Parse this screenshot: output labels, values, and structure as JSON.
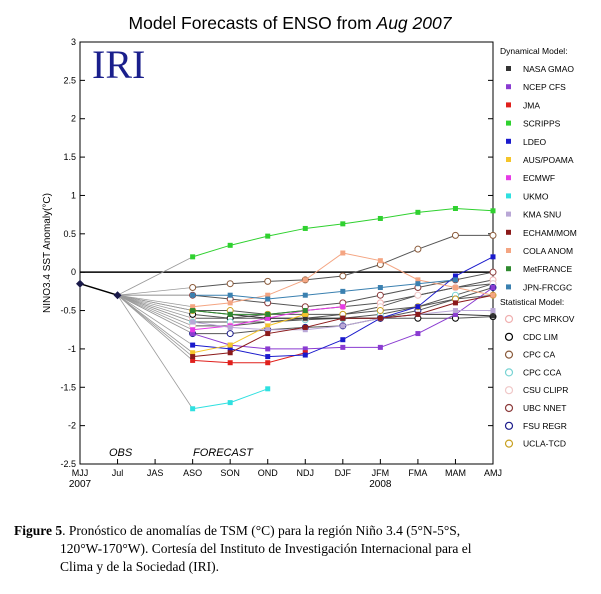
{
  "chart_data": {
    "type": "line",
    "title": "Model Forecasts of ENSO from",
    "title_month": "Aug 2007",
    "logo": "IRI",
    "ylabel": "NINO3.4 SST Anomaly(°C)",
    "ylim": [
      -2.5,
      3
    ],
    "yticks": [
      -2.5,
      -2,
      -1.5,
      -1,
      -0.5,
      0,
      0.5,
      1,
      1.5,
      2,
      2.5,
      3
    ],
    "ytick_labels": [
      "-2.5",
      "-2",
      "-1.5",
      "-1",
      "-0.5",
      "0",
      "0.5",
      "1",
      "1.5",
      "2",
      "2.5",
      "3"
    ],
    "x_categories": [
      "MJJ",
      "Jul",
      "JAS",
      "ASO",
      "SON",
      "OND",
      "NDJ",
      "DJF",
      "JFM",
      "FMA",
      "MAM",
      "AMJ"
    ],
    "year_labels": [
      {
        "label": "2007",
        "at": 0
      },
      {
        "label": "2008",
        "at": 8
      }
    ],
    "obs_label": "OBS",
    "forecast_label": "FORECAST",
    "zero_line": true,
    "observed": {
      "x": [
        0,
        1
      ],
      "values": [
        -0.15,
        -0.3
      ]
    },
    "legend_dynamical_title": "Dynamical Model:",
    "legend_statistical_title": "Statistical Model:",
    "dynamical": [
      {
        "name": "NASA GMAO",
        "color": "#333333",
        "values": [
          -0.5,
          -0.55,
          -0.6,
          -0.6,
          -0.6,
          -0.6,
          -0.55,
          -0.55,
          -0.57
        ]
      },
      {
        "name": "NCEP CFS",
        "color": "#8a3bd1",
        "values": [
          -0.8,
          -0.95,
          -1.0,
          -1.0,
          -0.98,
          -0.98,
          -0.8,
          -0.55,
          -0.2
        ]
      },
      {
        "name": "JMA",
        "color": "#e0201c",
        "values": [
          -1.15,
          -1.18,
          -1.18,
          -1.05
        ]
      },
      {
        "name": "SCRIPPS",
        "color": "#2fd12f",
        "values": [
          0.2,
          0.35,
          0.47,
          0.57,
          0.63,
          0.7,
          0.78,
          0.83,
          0.8
        ]
      },
      {
        "name": "LDEO",
        "color": "#1a1acc",
        "values": [
          -0.95,
          -1.0,
          -1.1,
          -1.08,
          -0.88,
          -0.6,
          -0.45,
          -0.05,
          0.2
        ]
      },
      {
        "name": "AUS/POAMA",
        "color": "#f5c52a",
        "values": [
          -1.05,
          -0.95,
          -0.7,
          -0.55
        ]
      },
      {
        "name": "ECMWF",
        "color": "#e63be6",
        "values": [
          -0.75,
          -0.7,
          -0.6,
          -0.5,
          -0.45
        ]
      },
      {
        "name": "UKMO",
        "color": "#2fe0e0",
        "values": [
          -1.78,
          -1.7,
          -1.52
        ]
      },
      {
        "name": "KMA SNU",
        "color": "#b9a7d6",
        "values": [
          -0.65,
          -0.72,
          -0.75,
          -0.75,
          -0.7,
          -0.6,
          -0.55,
          -0.5,
          -0.5
        ]
      },
      {
        "name": "ECHAM/MOM",
        "color": "#8b1a1a",
        "values": [
          -1.1,
          -1.05,
          -0.8,
          -0.72,
          -0.6,
          -0.6,
          -0.55,
          -0.4,
          -0.3
        ]
      },
      {
        "name": "COLA ANOM",
        "color": "#f4a582",
        "values": [
          -0.45,
          -0.4,
          -0.3,
          -0.1,
          0.25,
          0.15,
          -0.1,
          -0.2,
          -0.3
        ]
      },
      {
        "name": "MetFRANCE",
        "color": "#2f8a2f",
        "values": [
          -0.5,
          -0.55,
          -0.55,
          -0.5
        ]
      },
      {
        "name": "JPN-FRCGC",
        "color": "#3a80b0",
        "values": [
          -0.3,
          -0.3,
          -0.35,
          -0.3,
          -0.25,
          -0.2,
          -0.15,
          -0.1
        ]
      }
    ],
    "statistical": [
      {
        "name": "CPC MRKOV",
        "color": "#f0b0b0",
        "values": [
          -0.6,
          -0.6,
          -0.55,
          -0.5,
          -0.45,
          -0.4,
          -0.3,
          -0.2,
          -0.1
        ]
      },
      {
        "name": "CDC LIM",
        "color": "#000000",
        "values": [
          -0.55,
          -0.6,
          -0.6,
          -0.6,
          -0.6,
          -0.6,
          -0.6,
          -0.6,
          -0.58
        ]
      },
      {
        "name": "CPC CA",
        "color": "#8a5a3a",
        "values": [
          -0.2,
          -0.15,
          -0.12,
          -0.1,
          -0.05,
          0.1,
          0.3,
          0.48,
          0.48
        ]
      },
      {
        "name": "CPC CCA",
        "color": "#7ad4d4",
        "values": [
          -0.65,
          -0.65,
          -0.65,
          -0.62,
          -0.6,
          -0.55,
          -0.45,
          -0.3,
          -0.15
        ]
      },
      {
        "name": "CSU CLIPR",
        "color": "#f0c8c8",
        "values": [
          -0.7,
          -0.7,
          -0.65,
          -0.6,
          -0.55,
          -0.45,
          -0.3,
          -0.2,
          -0.15
        ]
      },
      {
        "name": "UBC NNET",
        "color": "#8b3a3a",
        "values": [
          -0.3,
          -0.35,
          -0.4,
          -0.45,
          -0.4,
          -0.3,
          -0.2,
          -0.1,
          0.0
        ]
      },
      {
        "name": "FSU REGR",
        "color": "#1a1a8a",
        "values": [
          -0.8,
          -0.8,
          -0.75,
          -0.72,
          -0.7,
          -0.6,
          -0.5,
          -0.35,
          -0.2
        ]
      },
      {
        "name": "UCLA-TCD",
        "color": "#c8a020",
        "values": [
          -0.5,
          -0.5,
          -0.55,
          -0.55,
          -0.55,
          -0.5,
          -0.45,
          -0.35,
          -0.3
        ]
      }
    ]
  },
  "caption": {
    "label": "Figure 5",
    "line1": ". Pronóstico de anomalías de TSM (°C) para la región Niño 3.4 (5°N-5°S,",
    "line2": "120°W-170°W). Cortesía del Instituto de Investigación Internacional para el",
    "line3": "Clima y de la Sociedad (IRI)."
  }
}
